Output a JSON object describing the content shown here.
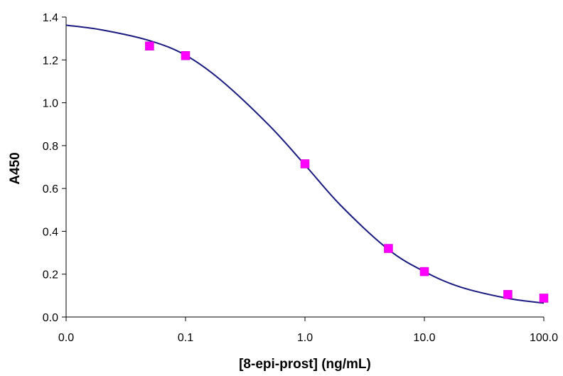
{
  "chart_data": {
    "type": "scatter",
    "title": "",
    "xlabel": "[8-epi-prost] (ng/mL)",
    "ylabel": "A450",
    "x_scale": "log",
    "xlim": [
      0.01,
      100.0
    ],
    "ylim": [
      0.0,
      1.4
    ],
    "x_tick_labels": [
      "0.0",
      "0.1",
      "1.0",
      "10.0",
      "100.0"
    ],
    "x_tick_values": [
      0.01,
      0.1,
      1.0,
      10.0,
      100.0
    ],
    "y_tick_labels": [
      "0.0",
      "0.2",
      "0.4",
      "0.6",
      "0.8",
      "1.0",
      "1.2",
      "1.4"
    ],
    "y_tick_values": [
      0.0,
      0.2,
      0.4,
      0.6,
      0.8,
      1.0,
      1.2,
      1.4
    ],
    "grid": false,
    "legend": "none",
    "series": [
      {
        "kind": "points",
        "marker": "square",
        "color": "#ff00ff",
        "x": [
          0.05,
          0.1,
          1.0,
          5.0,
          10.0,
          50.0,
          100.0
        ],
        "y": [
          1.265,
          1.22,
          0.715,
          0.32,
          0.212,
          0.105,
          0.088
        ]
      },
      {
        "kind": "fitted-curve",
        "color": "#1a1a80",
        "x": [
          0.01,
          0.02,
          0.05,
          0.1,
          0.2,
          0.5,
          1.0,
          2.0,
          5.0,
          10.0,
          20.0,
          50.0,
          100.0
        ],
        "y": [
          1.362,
          1.34,
          1.29,
          1.222,
          1.103,
          0.895,
          0.71,
          0.52,
          0.315,
          0.212,
          0.14,
          0.087,
          0.065
        ]
      }
    ]
  }
}
